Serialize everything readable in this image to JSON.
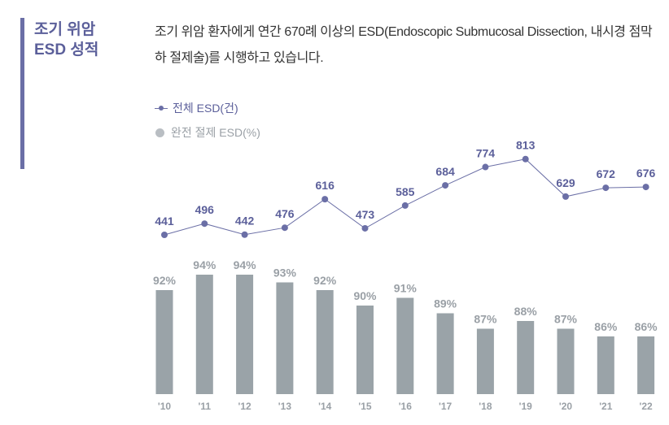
{
  "sidebar": {
    "title_line1": "조기 위암",
    "title_line2": "ESD 성적",
    "accent_color": "#6b6fa6"
  },
  "description": "조기 위암 환자에게 연간 670례 이상의 ESD(Endoscopic Submucosal Dissection, 내시경 점막하 절제술)를 시행하고 있습니다.",
  "legend": {
    "line_label": "전체 ESD(건)",
    "bar_label": "완전 절제 ESD(%)"
  },
  "chart_data": {
    "type": "bar",
    "categories": [
      "'10",
      "'11",
      "'12",
      "'13",
      "'14",
      "'15",
      "'16",
      "'17",
      "'18",
      "'19",
      "'20",
      "'21",
      "'22"
    ],
    "series": [
      {
        "name": "전체 ESD(건)",
        "type": "line",
        "values": [
          441,
          496,
          442,
          476,
          616,
          473,
          585,
          684,
          774,
          813,
          629,
          672,
          676
        ],
        "labels": [
          "441",
          "496",
          "442",
          "476",
          "616",
          "473",
          "585",
          "684",
          "774",
          "813",
          "629",
          "672",
          "676"
        ],
        "color": "#6b6fa6"
      },
      {
        "name": "완전 절제 ESD(%)",
        "type": "bar",
        "values": [
          92,
          94,
          94,
          93,
          92,
          90,
          91,
          89,
          87,
          88,
          87,
          86,
          86
        ],
        "labels": [
          "92%",
          "94%",
          "94%",
          "93%",
          "92%",
          "90%",
          "91%",
          "89%",
          "87%",
          "88%",
          "87%",
          "86%",
          "86%"
        ],
        "color": "#9aa3a8"
      }
    ],
    "legend_position": "top-left",
    "grid": false
  }
}
